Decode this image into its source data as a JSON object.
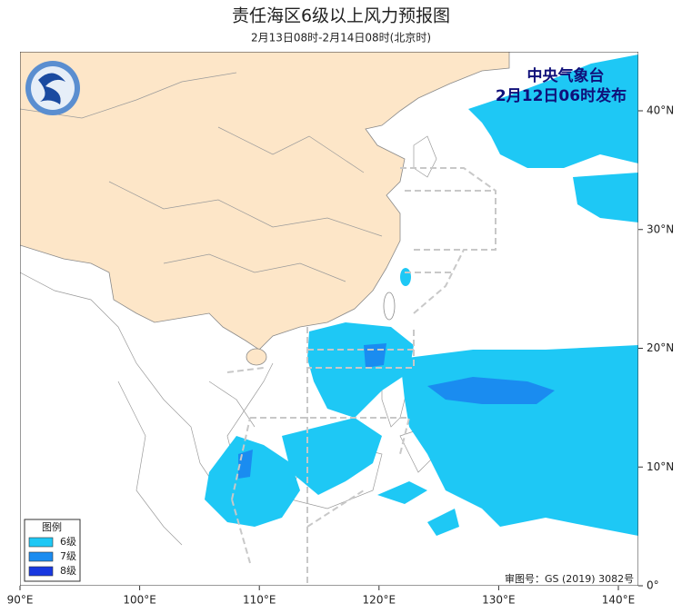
{
  "header": {
    "title": "责任海区6级以上风力预报图",
    "subtitle": "2月13日08时-2月14日08时(北京时)"
  },
  "issuer": {
    "name": "中央气象台",
    "time": "2月12日06时发布"
  },
  "map": {
    "xticks": [
      {
        "value": 90,
        "label": "90°E"
      },
      {
        "value": 100,
        "label": "100°E"
      },
      {
        "value": 110,
        "label": "110°E"
      },
      {
        "value": 120,
        "label": "120°E"
      },
      {
        "value": 130,
        "label": "130°E"
      },
      {
        "value": 140,
        "label": "140°E"
      }
    ],
    "yticks": [
      {
        "value": 0,
        "label": "0°"
      },
      {
        "value": 10,
        "label": "10°N"
      },
      {
        "value": 20,
        "label": "20°N"
      },
      {
        "value": 30,
        "label": "30°N"
      },
      {
        "value": 40,
        "label": "40°N"
      }
    ]
  },
  "legend": {
    "title": "图例",
    "items": [
      {
        "label": "6级",
        "color": "#1ec8f5"
      },
      {
        "label": "7级",
        "color": "#1a8cf0"
      },
      {
        "label": "8级",
        "color": "#1838e0"
      }
    ]
  },
  "approval": "审图号：GS (2019) 3082号"
}
